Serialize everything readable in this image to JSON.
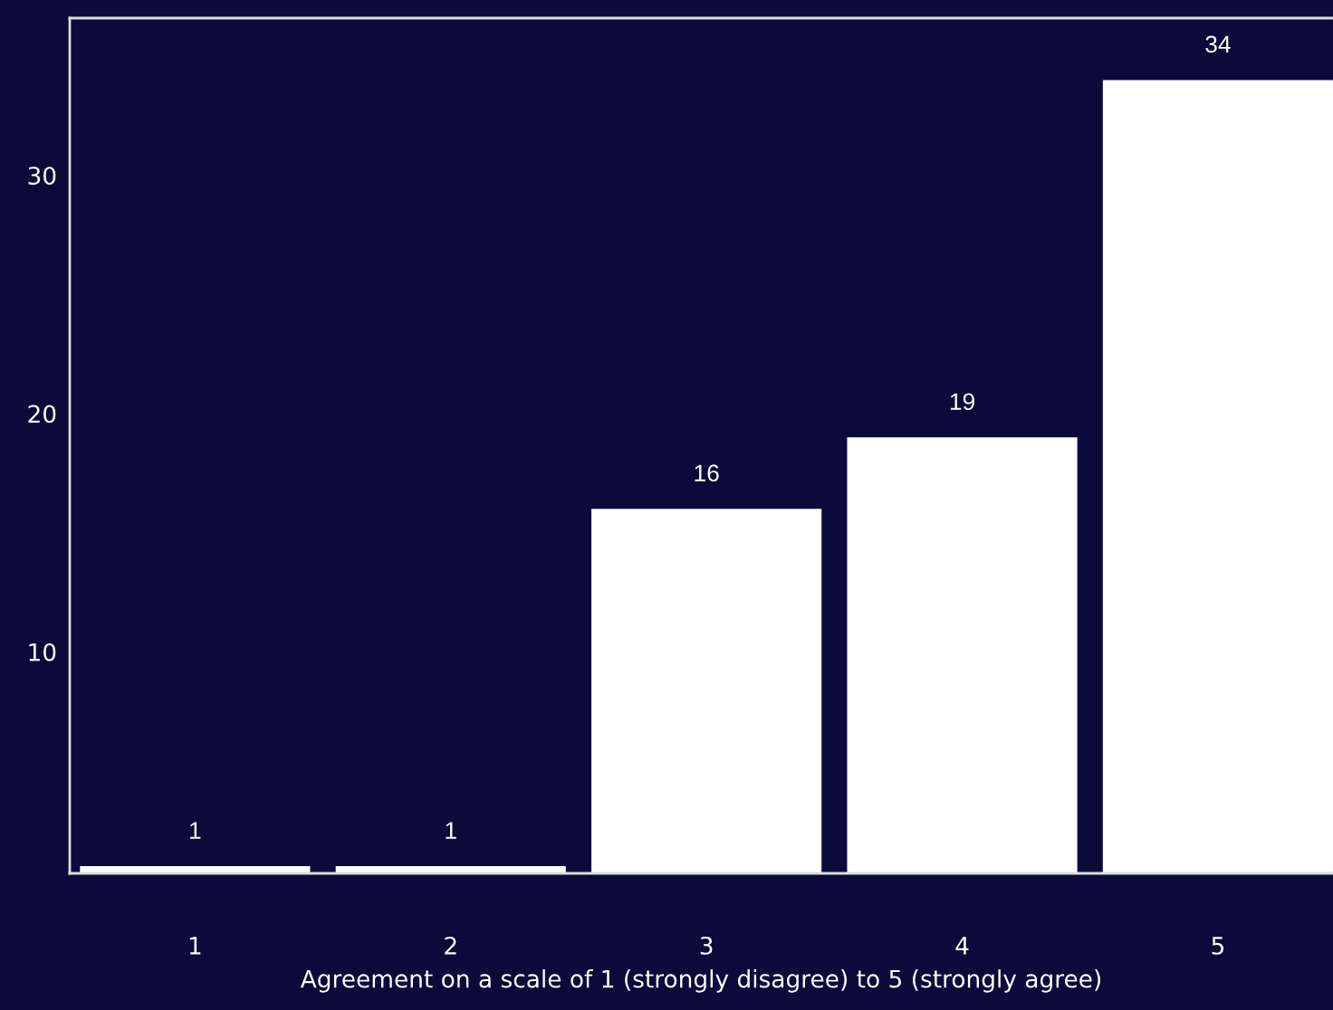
{
  "chart_data": {
    "type": "bar",
    "xlabel": "Agreement on a scale of 1 (strongly disagree) to 5 (strongly agree)",
    "categories": [
      "1",
      "2",
      "3",
      "4",
      "5"
    ],
    "values": [
      1,
      1,
      16,
      19,
      34
    ],
    "color": "#ffffff",
    "ylim": [
      0.7,
      36.6
    ],
    "yticks": [
      10,
      20,
      30
    ],
    "data_labels": true
  }
}
